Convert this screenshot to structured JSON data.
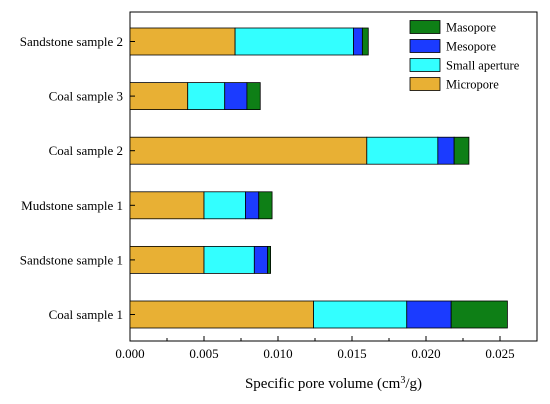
{
  "chart_data": {
    "type": "bar",
    "orientation": "horizontal",
    "stacked": true,
    "title": "",
    "xlabel": "Specific pore volume (cm³/g)",
    "xlabel_parts": {
      "prefix": "Specific pore volume (cm",
      "superscript": "3",
      "suffix": "/g)"
    },
    "ylabel": "",
    "xlim": [
      0,
      0.0275
    ],
    "x_ticks": [
      0.0,
      0.005,
      0.01,
      0.015,
      0.02,
      0.025
    ],
    "x_tick_labels": [
      "0.000",
      "0.005",
      "0.010",
      "0.015",
      "0.020",
      "0.025"
    ],
    "grid": false,
    "legend_position": "top-right",
    "categories": [
      "Coal sample 1",
      "Sandstone sample 1",
      "Mudstone sample 1",
      "Coal sample 2",
      "Coal sample 3",
      "Sandstone sample 2"
    ],
    "series": [
      {
        "name": "Micropore",
        "color": "#E8B034",
        "values": [
          0.0124,
          0.005,
          0.005,
          0.016,
          0.0039,
          0.0071
        ]
      },
      {
        "name": "Small aperture",
        "color": "#33FFFF",
        "values": [
          0.0063,
          0.0034,
          0.0028,
          0.0048,
          0.0025,
          0.008
        ]
      },
      {
        "name": "Mesopore",
        "color": "#1B3BFF",
        "values": [
          0.003,
          0.0009,
          0.0009,
          0.0011,
          0.0015,
          0.0006
        ]
      },
      {
        "name": "Masopore",
        "color": "#0E7F16",
        "values": [
          0.0038,
          0.0002,
          0.0009,
          0.001,
          0.0009,
          0.0004
        ]
      }
    ],
    "legend_order": [
      "Masopore",
      "Mesopore",
      "Small aperture",
      "Micropore"
    ]
  }
}
